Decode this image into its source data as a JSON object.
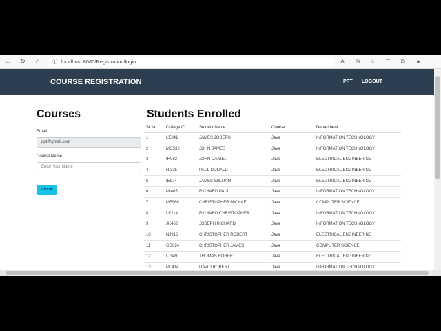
{
  "browser": {
    "url": "localhost:8080/Registration/login"
  },
  "navbar": {
    "brand": "COURSE REGISTRATION",
    "links": [
      "PPT",
      "LOGOUT"
    ],
    "color": "#2c3e50"
  },
  "form": {
    "title": "Courses",
    "email_label": "Email",
    "email_value": "ppt@gmail.com",
    "course_label": "Course Name",
    "course_placeholder": "Enter Your Name",
    "submit_label": "submit",
    "submit_color": "#17c1e8"
  },
  "table": {
    "title": "Students Enrolled",
    "headers": [
      "Sr No",
      "College ID",
      "Student Name",
      "Course",
      "Department"
    ],
    "rows": [
      [
        "1",
        "LE341",
        "JAMES JOSEPH",
        "Java",
        "INFORMATION TECHNOLOGY"
      ],
      [
        "2",
        "MG532",
        "JOHN JAMES",
        "Java",
        "INFORMATION TECHNOLOGY"
      ],
      [
        "3",
        "IH082",
        "JOHN DANIEL",
        "Java",
        "ELECTRICAL ENGINEERING"
      ],
      [
        "4",
        "HI335",
        "PAUL DONALD",
        "Java",
        "ELECTRICAL ENGINEERING"
      ],
      [
        "5",
        "IE974",
        "JAMES WILLIAM",
        "Java",
        "ELECTRICAL ENGINEERING"
      ],
      [
        "6",
        "MI405",
        "RICHARD PAUL",
        "Java",
        "INFORMATION TECHNOLOGY"
      ],
      [
        "7",
        "MF966",
        "CHRISTOPHER MICHAEL",
        "Java",
        "COMPUTER SCIENCE"
      ],
      [
        "8",
        "LK114",
        "RICHARD CHRISTOPHER",
        "Java",
        "INFORMATION TECHNOLOGY"
      ],
      [
        "9",
        "JK462",
        "JOSEPH RICHARD",
        "Java",
        "INFORMATION TECHNOLOGY"
      ],
      [
        "10",
        "NJ916",
        "CHRISTOPHER ROBERT",
        "Java",
        "ELECTRICAL ENGINEERING"
      ],
      [
        "11",
        "GD024",
        "CHRISTOPHER JAMES",
        "Java",
        "COMPUTER SCIENCE"
      ],
      [
        "12",
        "LJ949",
        "THOMAS ROBERT",
        "Java",
        "ELECTRICAL ENGINEERING"
      ],
      [
        "13",
        "ML414",
        "DAVID ROBERT",
        "Java",
        "INFORMATION TECHNOLOGY"
      ]
    ]
  }
}
